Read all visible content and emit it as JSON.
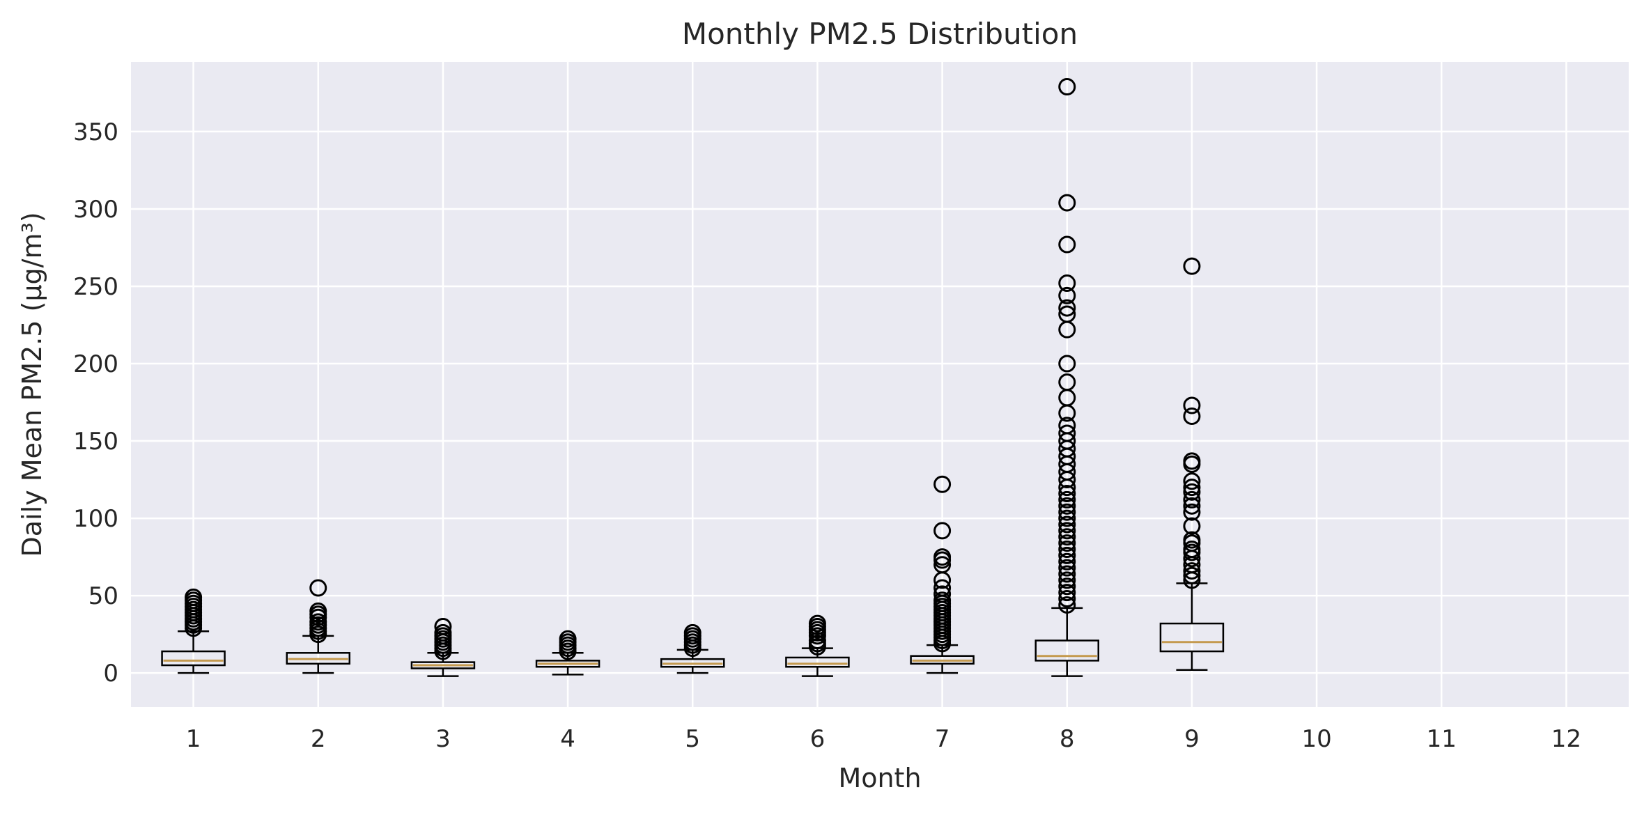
{
  "chart_data": {
    "type": "box",
    "title": "Monthly PM2.5 Distribution",
    "xlabel": "Month",
    "ylabel": "Daily Mean PM2.5 (µg/m³)",
    "ylim": [
      -22,
      395
    ],
    "y_ticks": [
      0,
      50,
      100,
      150,
      200,
      250,
      300,
      350
    ],
    "grid": true,
    "background": "#eaeaf2",
    "grid_color": "#ffffff",
    "median_color": "#c49a4f",
    "box_color": "#000000",
    "categories": [
      "1",
      "2",
      "3",
      "4",
      "5",
      "6",
      "7",
      "8",
      "9",
      "10",
      "11",
      "12"
    ],
    "boxes": [
      {
        "month": "1",
        "whisker_low": 0,
        "q1": 5,
        "median": 8,
        "q3": 14,
        "whisker_high": 27,
        "outliers": [
          29,
          31,
          33,
          35,
          37,
          39,
          41,
          43,
          45,
          47,
          49
        ]
      },
      {
        "month": "2",
        "whisker_low": 0,
        "q1": 6,
        "median": 9,
        "q3": 13,
        "whisker_high": 24,
        "outliers": [
          25,
          27,
          29,
          31,
          33,
          36,
          38,
          40,
          55
        ]
      },
      {
        "month": "3",
        "whisker_low": -2,
        "q1": 3,
        "median": 5,
        "q3": 7,
        "whisker_high": 13,
        "outliers": [
          14,
          16,
          18,
          20,
          22,
          24,
          26,
          30
        ]
      },
      {
        "month": "4",
        "whisker_low": -1,
        "q1": 4,
        "median": 6,
        "q3": 8,
        "whisker_high": 13,
        "outliers": [
          14,
          16,
          18,
          20,
          22
        ]
      },
      {
        "month": "5",
        "whisker_low": 0,
        "q1": 4,
        "median": 6,
        "q3": 9,
        "whisker_high": 15,
        "outliers": [
          16,
          18,
          20,
          22,
          24,
          26
        ]
      },
      {
        "month": "6",
        "whisker_low": -2,
        "q1": 4,
        "median": 6,
        "q3": 10,
        "whisker_high": 16,
        "outliers": [
          17,
          19,
          21,
          24,
          26,
          28,
          30,
          32
        ]
      },
      {
        "month": "7",
        "whisker_low": 0,
        "q1": 6,
        "median": 8,
        "q3": 11,
        "whisker_high": 18,
        "outliers": [
          19,
          21,
          23,
          25,
          27,
          29,
          31,
          33,
          35,
          37,
          39,
          41,
          43,
          45,
          47,
          51,
          55,
          60,
          70,
          73,
          75,
          92,
          122
        ]
      },
      {
        "month": "8",
        "whisker_low": -2,
        "q1": 8,
        "median": 11,
        "q3": 21,
        "whisker_high": 42,
        "outliers": [
          44,
          48,
          52,
          56,
          60,
          64,
          68,
          72,
          76,
          80,
          84,
          88,
          92,
          96,
          100,
          104,
          108,
          112,
          116,
          120,
          125,
          130,
          135,
          140,
          145,
          150,
          155,
          160,
          168,
          178,
          188,
          200,
          222,
          232,
          236,
          244,
          252,
          277,
          304,
          379
        ]
      },
      {
        "month": "9",
        "whisker_low": 2,
        "q1": 14,
        "median": 20,
        "q3": 32,
        "whisker_high": 58,
        "outliers": [
          60,
          63,
          66,
          70,
          74,
          78,
          80,
          84,
          86,
          95,
          104,
          108,
          112,
          117,
          120,
          124,
          135,
          137,
          166,
          173,
          263
        ]
      }
    ]
  }
}
